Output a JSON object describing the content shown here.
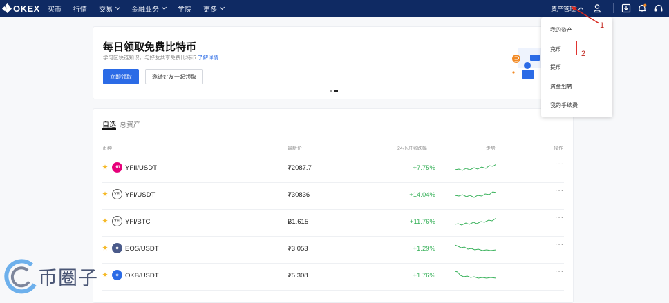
{
  "nav": {
    "logo_text": "OKEX",
    "items": [
      "买币",
      "行情",
      "交易",
      "金融业务",
      "学院",
      "更多"
    ],
    "asset_management": "资产管理"
  },
  "banner": {
    "title": "每日领取免费比特币",
    "subtitle": "学习区块链知识，与好友共享免费比特币",
    "subtitle_link": "了解详情",
    "primary_button": "立即领取",
    "secondary_button": "邀请好友一起领取"
  },
  "dropdown": {
    "items": [
      "我的资产",
      "充币",
      "提币",
      "资金划转",
      "我的手续费"
    ]
  },
  "annotations": [
    "1",
    "2"
  ],
  "market": {
    "tabs": [
      "自选",
      "总资产"
    ],
    "columns": [
      "币种",
      "最新价",
      "24小时涨跌幅",
      "走势",
      "操作"
    ],
    "rows": [
      {
        "pair": "YFII/USDT",
        "price": "₮2087.7",
        "change": "+7.75%"
      },
      {
        "pair": "YFI/USDT",
        "price": "₮30836",
        "change": "+14.04%"
      },
      {
        "pair": "YFI/BTC",
        "price": "Ƀ1.615",
        "change": "+11.76%"
      },
      {
        "pair": "EOS/USDT",
        "price": "₮3.053",
        "change": "+1.29%"
      },
      {
        "pair": "OKB/USDT",
        "price": "₮5.308",
        "change": "+1.76%"
      }
    ],
    "more_label": "···"
  },
  "watermark": {
    "text": "币圈子"
  },
  "colors": {
    "nav_bg": "#0f2a63",
    "primary": "#2b6be6",
    "positive": "#38b15a",
    "highlight": "#e0332f"
  }
}
